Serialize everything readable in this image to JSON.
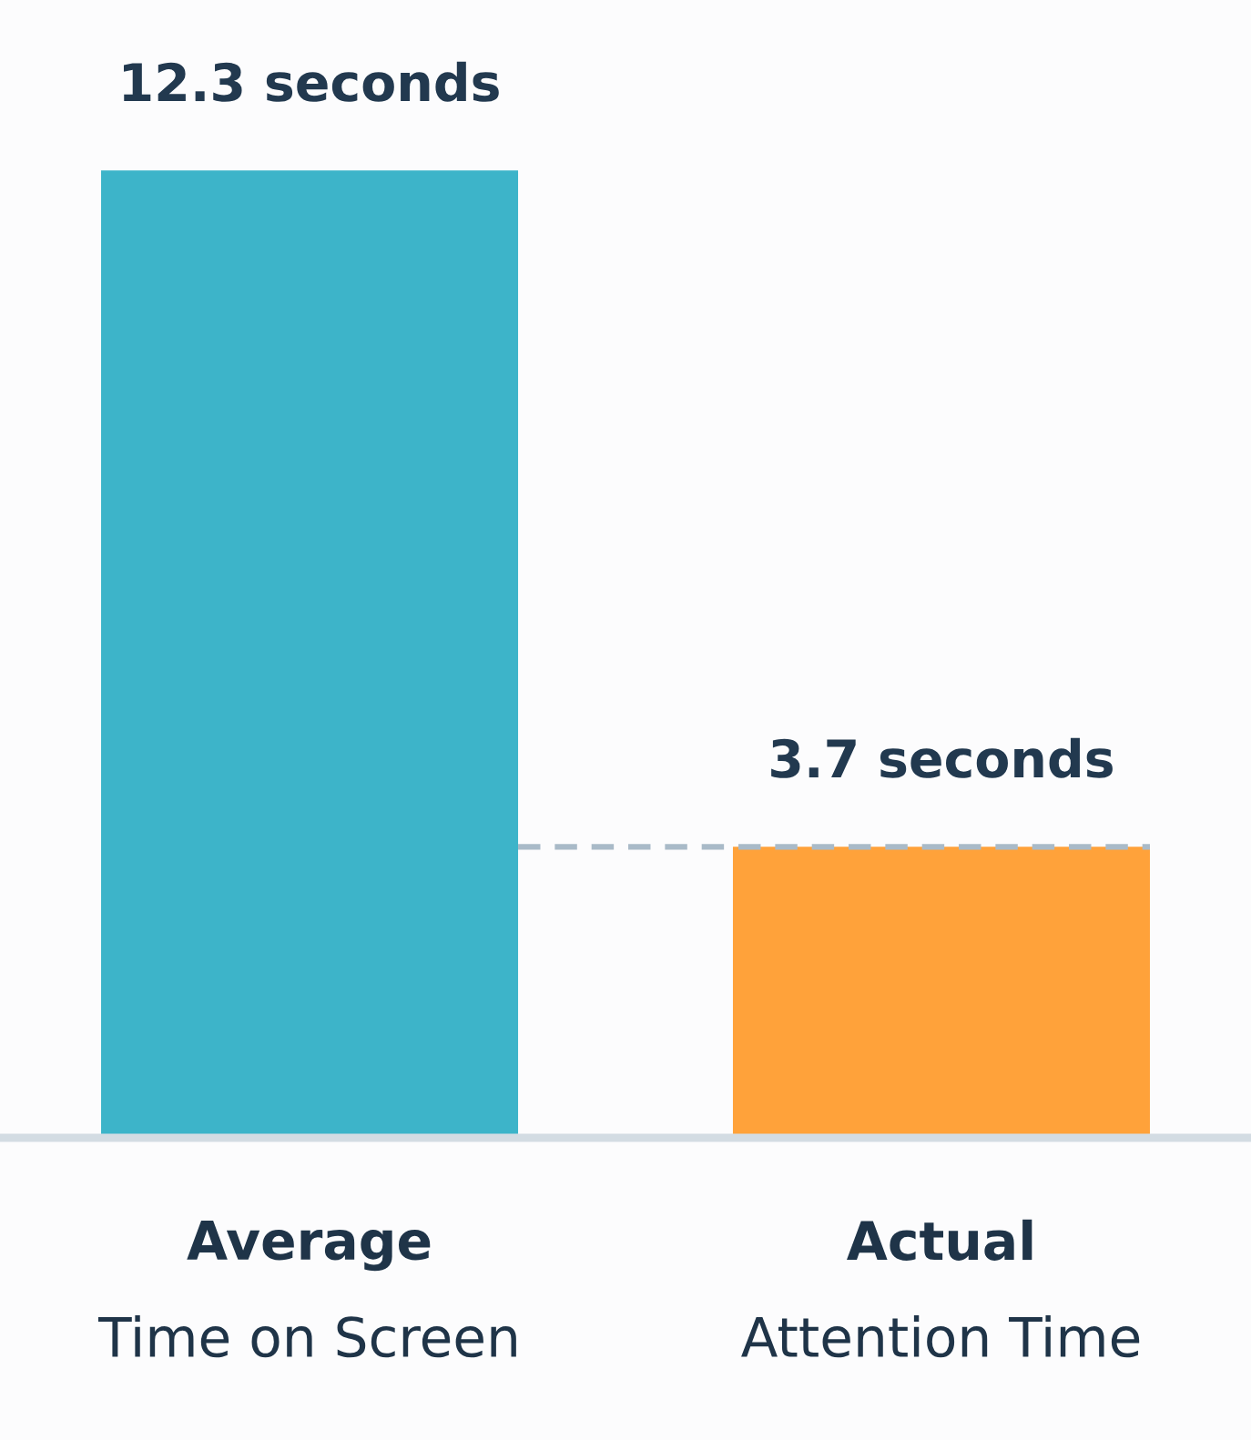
{
  "chart_data": {
    "type": "bar",
    "categories": [
      "Average\nTime on Screen",
      "Actual\nAttention Time"
    ],
    "values": [
      12.3,
      3.7
    ],
    "colors": [
      "#3db4c9",
      "#ffa23a"
    ],
    "value_labels": [
      "12.3 seconds",
      "3.7 seconds"
    ],
    "ref_lines": [
      {
        "axis": "y",
        "value": 3.7,
        "color": "#a9bac8",
        "line_style": "dashed"
      }
    ]
  }
}
